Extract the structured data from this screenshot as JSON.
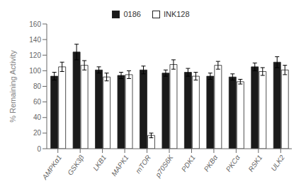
{
  "chart_data": {
    "type": "bar",
    "categories": [
      "AMPKα1",
      "GSK3β",
      "LKB1",
      "MAPK1",
      "mTOR",
      "p70S6K",
      "PDK1",
      "PKBα",
      "PKCα",
      "RSK1",
      "ULK2"
    ],
    "ylabel": "% Remaining Activity",
    "series": [
      {
        "name": "0186",
        "color": "#1a1a1a",
        "values": [
          93,
          124,
          101,
          94,
          101,
          97,
          98,
          93,
          92,
          105,
          111
        ],
        "errors": [
          5,
          10,
          4,
          4,
          5,
          4,
          5,
          4,
          4,
          5,
          7
        ]
      },
      {
        "name": "INK128",
        "color": "#ffffff",
        "values": [
          105,
          107,
          92,
          95,
          17,
          108,
          93,
          107,
          86,
          99,
          101
        ],
        "errors": [
          6,
          6,
          5,
          5,
          3,
          6,
          5,
          5,
          3,
          5,
          6
        ]
      }
    ],
    "ylim": [
      0,
      160
    ],
    "yticks": [
      0,
      20,
      40,
      60,
      80,
      100,
      120,
      140,
      160
    ],
    "grid": false,
    "legend": "top"
  }
}
